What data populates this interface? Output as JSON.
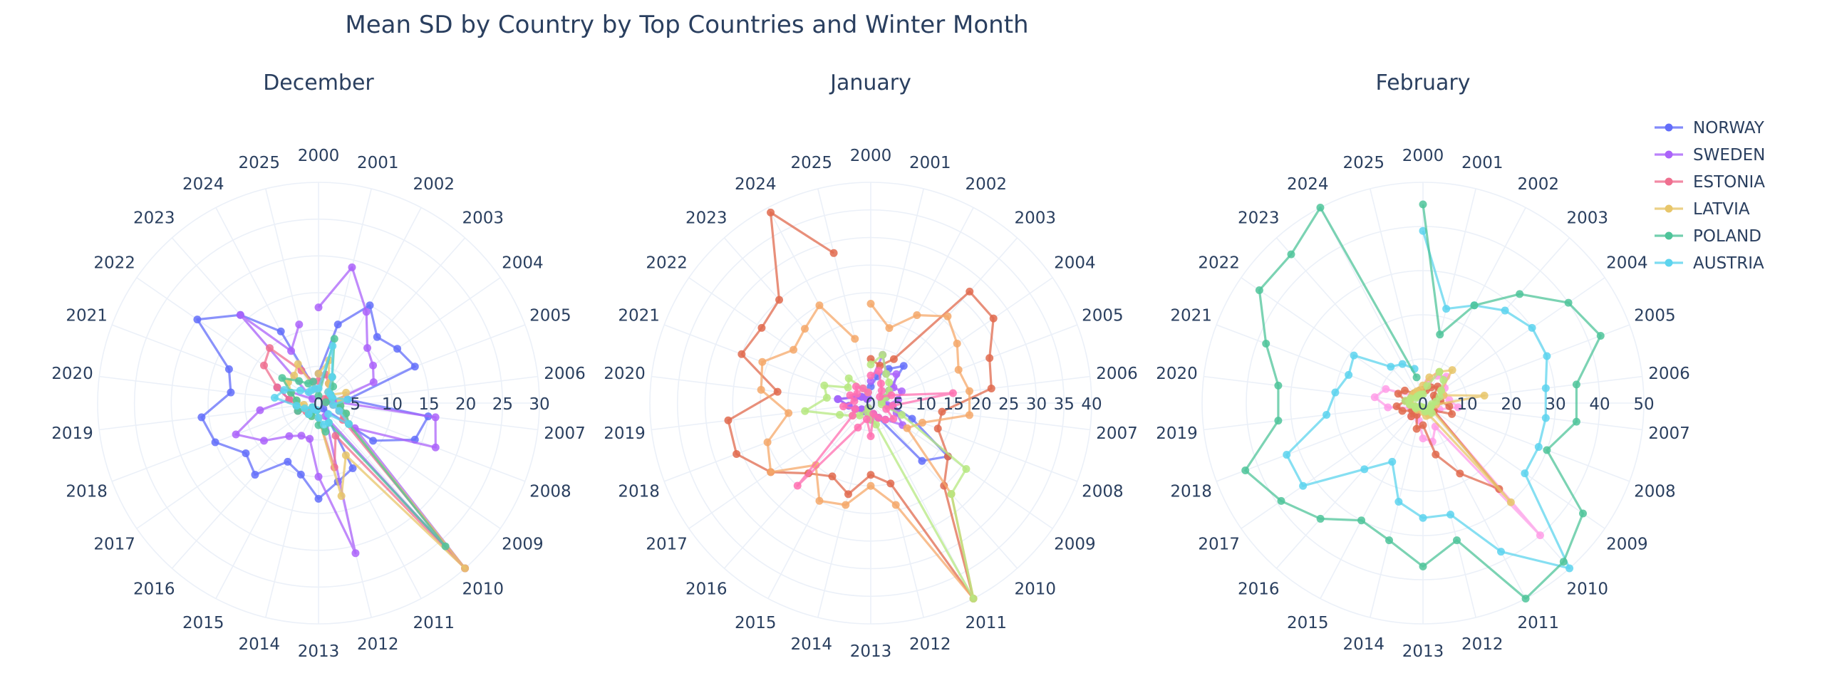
{
  "title": "Mean SD by Country by Top Countries and Winter Month",
  "chart_data": {
    "type": "polar-line",
    "angular_categories": [
      "2000",
      "2001",
      "2002",
      "2003",
      "2004",
      "2005",
      "2006",
      "2007",
      "2008",
      "2009",
      "2010",
      "2011",
      "2012",
      "2013",
      "2014",
      "2015",
      "2016",
      "2017",
      "2018",
      "2019",
      "2020",
      "2021",
      "2022",
      "2023",
      "2024",
      "2025"
    ],
    "legend": {
      "placement": "top-right",
      "entries": [
        {
          "name": "NORWAY",
          "color": "#636efa"
        },
        {
          "name": "SWEDEN",
          "color": "#ab63fa"
        },
        {
          "name": "ESTONIA",
          "color": "#ef6f8f"
        },
        {
          "name": "LATVIA",
          "color": "#e8c66a"
        },
        {
          "name": "POLAND",
          "color": "#4fc49a"
        },
        {
          "name": "AUSTRIA",
          "color": "#5dd4ee"
        }
      ]
    },
    "panels": [
      {
        "title": "December",
        "radial_ticks": [
          "0",
          "5",
          "10",
          "15",
          "20",
          "25",
          "30"
        ],
        "rmax": 30,
        "series": [
          {
            "color": "#636efa",
            "values": [
              4,
              11,
              15,
              12,
              13,
              14,
              4,
              15,
              14,
              9,
              1,
              10,
              11,
              13,
              10,
              9,
              13,
              12,
              15,
              16,
              12,
              13,
              20,
              16,
              11,
              2
            ]
          },
          {
            "color": "#ab63fa",
            "values": [
              13,
              19,
              14,
              10,
              9,
              8,
              2,
              16,
              17,
              6,
              32,
              2,
              21,
              10,
              5,
              5,
              6,
              9,
              12,
              8,
              4,
              6,
              1,
              16,
              8,
              11
            ]
          },
          {
            "color": "#ef6f8f",
            "values": [
              3,
              4,
              3,
              2,
              1,
              2,
              1,
              2,
              3,
              4,
              30,
              5,
              9,
              2,
              1,
              1,
              2,
              2,
              3,
              3,
              4,
              6,
              9,
              10,
              5,
              3
            ]
          },
          {
            "color": "#e8c66a",
            "values": [
              4,
              6,
              3,
              2,
              2,
              4,
              3,
              3,
              4,
              5,
              30,
              8,
              13,
              2,
              1,
              2,
              2,
              1,
              2,
              2,
              3,
              4,
              5,
              5,
              6,
              2
            ]
          },
          {
            "color": "#4fc49a",
            "values": [
              1,
              9,
              4,
              3,
              2,
              2,
              1,
              3,
              4,
              5,
              26,
              3,
              4,
              3,
              1,
              2,
              2,
              1,
              3,
              3,
              3,
              4,
              6,
              4,
              3,
              3
            ]
          },
          {
            "color": "#5dd4ee",
            "values": [
              2,
              8,
              4,
              2,
              2,
              2,
              4,
              2,
              3,
              5,
              2,
              3,
              3,
              2,
              1,
              1,
              2,
              1,
              2,
              3,
              6,
              5,
              3,
              2,
              2,
              2
            ]
          }
        ]
      },
      {
        "title": "January",
        "radial_ticks": [
          "0",
          "5",
          "10",
          "15",
          "20",
          "25",
          "30",
          "35",
          "40"
        ],
        "rmax": 40,
        "series": [
          {
            "color": "#636efa",
            "values": [
              3,
              5,
              7,
              9,
              4,
              3,
              2,
              4,
              8,
              17,
              14,
              3,
              2,
              3,
              2,
              1,
              2,
              2,
              3,
              4,
              6,
              3,
              2,
              1,
              1,
              2
            ]
          },
          {
            "color": "#ab63fa",
            "values": [
              4,
              9,
              6,
              7,
              5,
              6,
              5,
              3,
              5,
              7,
              4,
              3,
              2,
              3,
              2,
              1,
              2,
              2,
              3,
              4,
              6,
              3,
              2,
              1,
              1,
              2
            ]
          },
          {
            "color": "#e06a4e",
            "values": [
              8,
              7,
              9,
              27,
              27,
              23,
              22,
              13,
              13,
              17,
              20,
              42,
              15,
              13,
              17,
              15,
              17,
              22,
              26,
              26,
              17,
              25,
              24,
              25,
              39,
              28
            ]
          },
          {
            "color": "#f5a86a",
            "values": [
              18,
              14,
              18,
              21,
              19,
              17,
              18,
              18,
              10,
              8,
              22,
              40,
              19,
              15,
              19,
              20,
              15,
              22,
              20,
              15,
              20,
              21,
              17,
              18,
              20,
              12
            ]
          },
          {
            "color": "#b6e880",
            "values": [
              7,
              9,
              6,
              5,
              4,
              3,
              2,
              2,
              6,
              21,
              22,
              40,
              4,
              3,
              2,
              1,
              3,
              4,
              6,
              12,
              8,
              9,
              5,
              6,
              3,
              2
            ]
          },
          {
            "color": "#ff6fb0",
            "values": [
              5,
              6,
              4,
              3,
              2,
              4,
              15,
              4,
              3,
              5,
              4,
              3,
              2,
              6,
              3,
              5,
              20,
              4,
              3,
              5,
              3,
              4,
              3,
              4,
              3,
              2
            ]
          }
        ]
      },
      {
        "title": "February",
        "radial_ticks": [
          "0",
          "10",
          "20",
          "30",
          "40",
          "50"
        ],
        "rmax": 50,
        "series": [
          {
            "color": "#5dd4ee",
            "values": [
              39,
              22,
              25,
              28,
              30,
              30,
              28,
              28,
              28,
              28,
              53,
              38,
              26,
              26,
              23,
              15,
              20,
              33,
              33,
              22,
              20,
              18,
              19,
              11,
              10,
              8
            ]
          },
          {
            "color": "#4fc49a",
            "values": [
              45,
              16,
              25,
              33,
              40,
              43,
              35,
              35,
              30,
              44,
              48,
              56,
              32,
              37,
              32,
              30,
              35,
              39,
              43,
              33,
              33,
              38,
              45,
              45,
              50,
              6
            ]
          },
          {
            "color": "#ff9de8",
            "values": [
              3,
              5,
              7,
              8,
              6,
              5,
              6,
              8,
              4,
              3,
              40,
              6,
              9,
              8,
              4,
              3,
              4,
              3,
              3,
              8,
              11,
              9,
              3,
              2,
              2,
              2
            ]
          },
          {
            "color": "#e06a4e",
            "values": [
              3,
              3,
              4,
              5,
              3,
              3,
              4,
              6,
              7,
              3,
              26,
              18,
              12,
              5,
              6,
              3,
              4,
              3,
              5,
              6,
              4,
              6,
              5,
              3,
              2,
              3
            ]
          },
          {
            "color": "#e8c66a",
            "values": [
              4,
              6,
              8,
              10,
              5,
              5,
              14,
              3,
              2,
              2,
              30,
              3,
              3,
              2,
              1,
              1,
              2,
              2,
              2,
              3,
              3,
              3,
              3,
              3,
              3,
              3
            ]
          },
          {
            "color": "#b6e880",
            "values": [
              2,
              4,
              8,
              7,
              5,
              4,
              3,
              2,
              2,
              2,
              3,
              2,
              2,
              1,
              1,
              1,
              1,
              2,
              2,
              3,
              4,
              3,
              2,
              2,
              2,
              2
            ]
          }
        ]
      }
    ]
  }
}
